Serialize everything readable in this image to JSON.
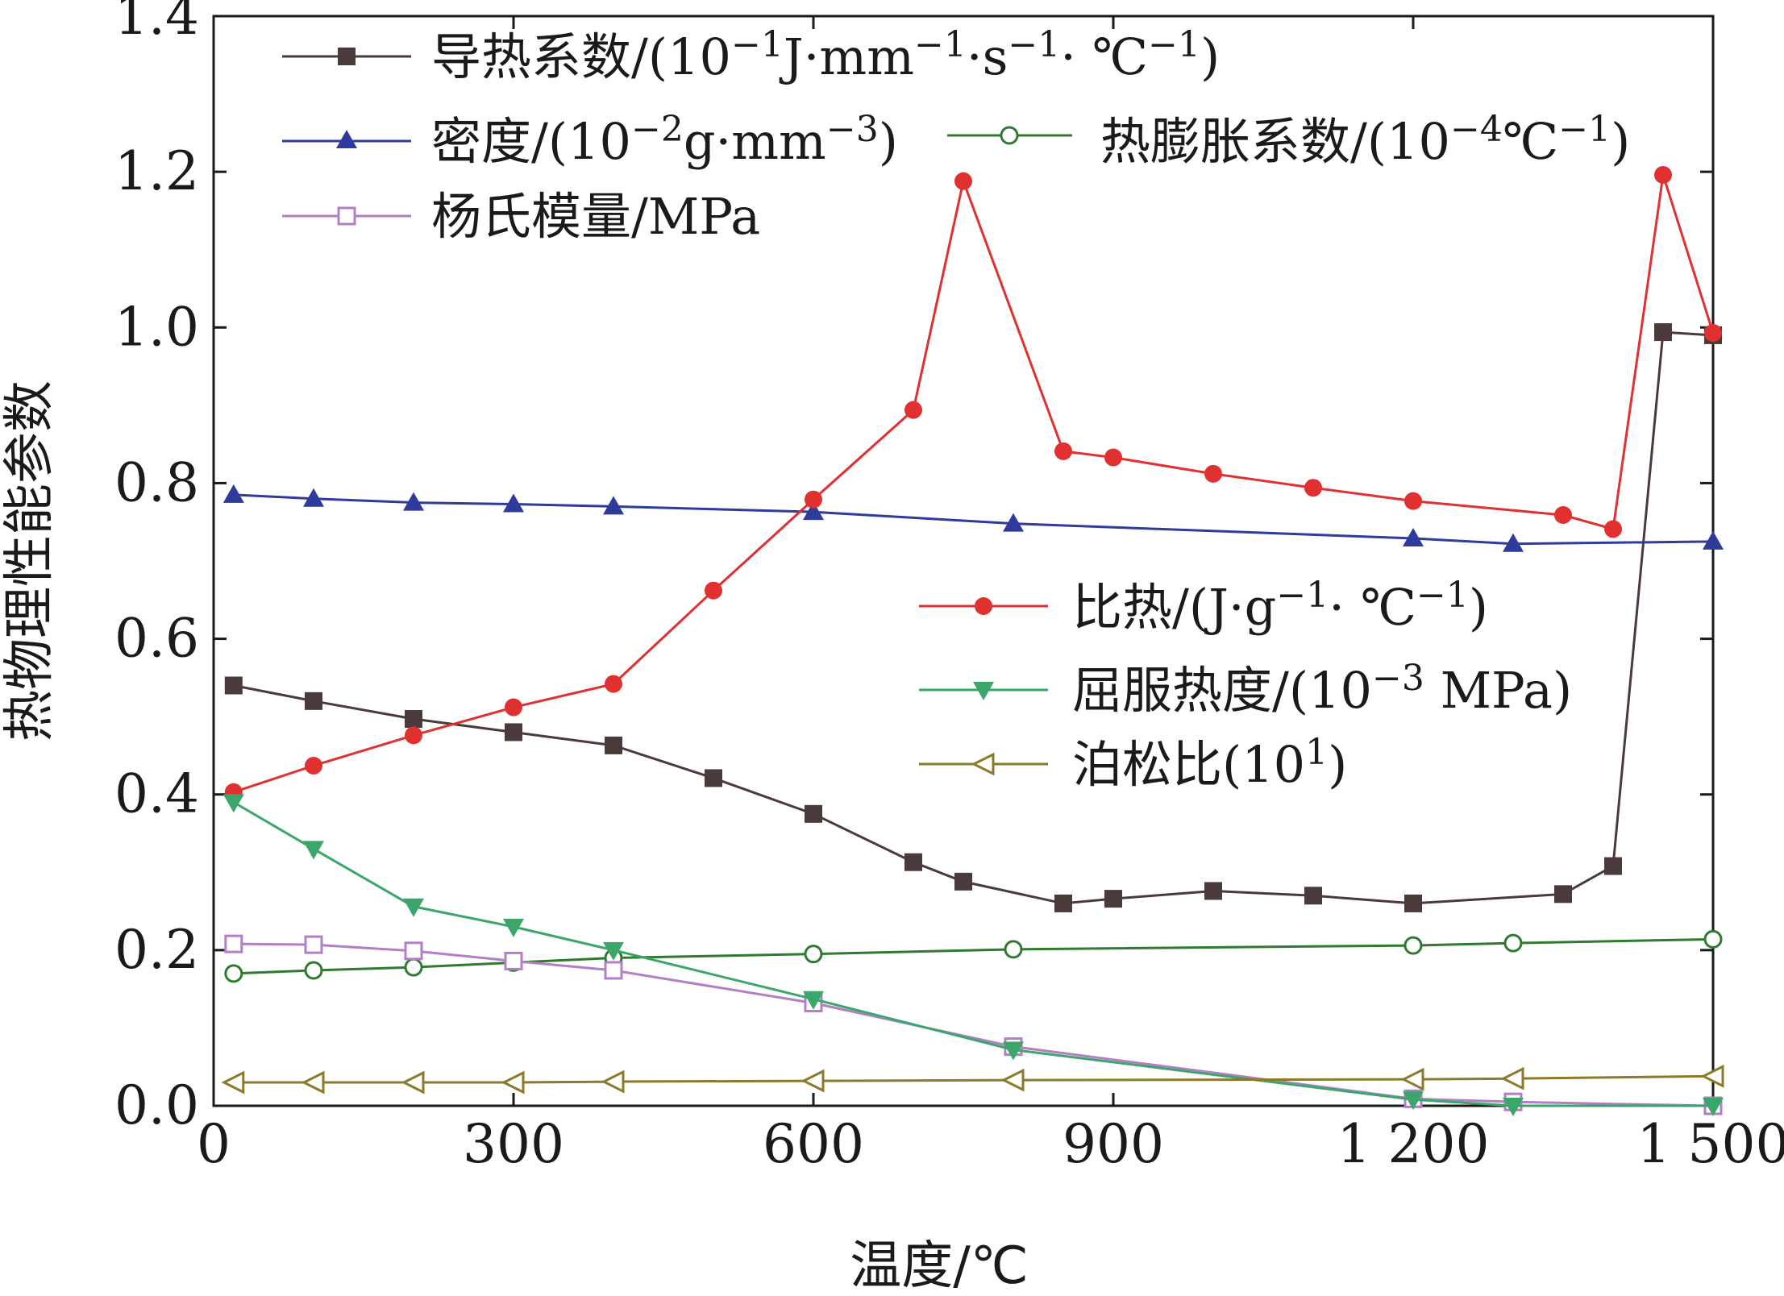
{
  "chart_data": {
    "type": "line",
    "xlabel": "温度/℃",
    "ylabel": "热物理性能参数",
    "xlim": [
      0,
      1500
    ],
    "ylim": [
      0,
      1.4
    ],
    "x_ticks": [
      0,
      300,
      600,
      900,
      1200,
      1500
    ],
    "x_tick_labels": [
      "0",
      "300",
      "600",
      "900",
      "1 200",
      "1 500"
    ],
    "y_ticks": [
      0,
      0.2,
      0.4,
      0.6,
      0.8,
      1.0,
      1.2,
      1.4
    ],
    "y_tick_labels": [
      "0.0",
      "0.2",
      "0.4",
      "0.6",
      "0.8",
      "1.0",
      "1.2",
      "1.4"
    ],
    "grid": false,
    "series": [
      {
        "name": "导热系数/(10⁻¹J·mm⁻¹·s⁻¹·℃⁻¹)",
        "color": "#4a3a3a",
        "marker": "square-filled",
        "x": [
          20,
          100,
          200,
          300,
          400,
          500,
          600,
          700,
          750,
          850,
          900,
          1000,
          1100,
          1200,
          1350,
          1400,
          1450,
          1500
        ],
        "y": [
          0.54,
          0.52,
          0.497,
          0.48,
          0.463,
          0.421,
          0.375,
          0.313,
          0.288,
          0.26,
          0.266,
          0.276,
          0.27,
          0.26,
          0.272,
          0.308,
          0.994,
          0.99
        ]
      },
      {
        "name": "密度/(10⁻²g·mm⁻³)",
        "color": "#2e3a9c",
        "marker": "triangle-up-filled",
        "x": [
          20,
          100,
          200,
          300,
          400,
          600,
          800,
          1200,
          1300,
          1500
        ],
        "y": [
          0.785,
          0.78,
          0.775,
          0.773,
          0.77,
          0.763,
          0.748,
          0.729,
          0.722,
          0.725
        ]
      },
      {
        "name": "热膨胀系数/(10⁻⁴℃⁻¹)",
        "color": "#2f7a2f",
        "marker": "circle-open",
        "x": [
          20,
          100,
          200,
          300,
          400,
          600,
          800,
          1200,
          1300,
          1500
        ],
        "y": [
          0.17,
          0.174,
          0.178,
          0.184,
          0.19,
          0.195,
          0.201,
          0.206,
          0.209,
          0.214
        ]
      },
      {
        "name": "杨氏模量/MPa",
        "color": "#b27fc6",
        "marker": "square-open",
        "x": [
          20,
          100,
          200,
          300,
          400,
          600,
          800,
          1200,
          1300,
          1500
        ],
        "y": [
          0.208,
          0.207,
          0.199,
          0.186,
          0.174,
          0.132,
          0.076,
          0.009,
          0.005,
          0.0
        ]
      },
      {
        "name": "比热/(J·g⁻¹·℃⁻¹)",
        "color": "#e03030",
        "marker": "circle-filled",
        "x": [
          20,
          100,
          200,
          300,
          400,
          500,
          600,
          700,
          750,
          850,
          900,
          1000,
          1100,
          1200,
          1350,
          1400,
          1450,
          1500
        ],
        "y": [
          0.403,
          0.437,
          0.476,
          0.512,
          0.542,
          0.662,
          0.779,
          0.894,
          1.188,
          0.841,
          0.833,
          0.812,
          0.794,
          0.777,
          0.759,
          0.741,
          1.196,
          0.993
        ]
      },
      {
        "name": "屈服热度/(10⁻³ MPa)",
        "color": "#3aa66a",
        "marker": "triangle-down-filled",
        "x": [
          20,
          100,
          200,
          300,
          400,
          600,
          800,
          1200,
          1300,
          1500
        ],
        "y": [
          0.39,
          0.33,
          0.256,
          0.23,
          0.2,
          0.137,
          0.072,
          0.008,
          0.0,
          0.0
        ]
      },
      {
        "name": "泊松比(10¹)",
        "color": "#8a7a2a",
        "marker": "triangle-left-open",
        "x": [
          20,
          100,
          200,
          300,
          400,
          600,
          800,
          1200,
          1300,
          1500
        ],
        "y": [
          0.03,
          0.03,
          0.03,
          0.03,
          0.031,
          0.032,
          0.033,
          0.034,
          0.035,
          0.038
        ]
      }
    ],
    "legend_top": {
      "row1": {
        "name": "导热系数/(10",
        "sup1": "−1",
        "t1": "J·mm",
        "sup2": "−1",
        "t2": "·s",
        "sup3": "−1",
        "t3": "· ℃",
        "sup4": "−1",
        "t4": ")"
      },
      "row2a": {
        "name": "密度/(10",
        "sup1": "−2",
        "t1": "g·mm",
        "sup2": "−3",
        "t2": ")"
      },
      "row2b": {
        "name": "热膨胀系数/(10",
        "sup1": "−4",
        "t1": "℃",
        "sup2": "−1",
        "t2": ")"
      },
      "row3": {
        "name": "杨氏模量/MPa"
      }
    },
    "legend_mid": {
      "row1": {
        "name": "比热/(J·g",
        "sup1": "−1",
        "t1": "· ℃",
        "sup2": "−1",
        "t2": ")"
      },
      "row2": {
        "name": "屈服热度/(10",
        "sup1": "−3",
        "t1": " MPa)"
      },
      "row3": {
        "name": "泊松比(10",
        "sup1": "1",
        "t1": ")"
      }
    }
  }
}
